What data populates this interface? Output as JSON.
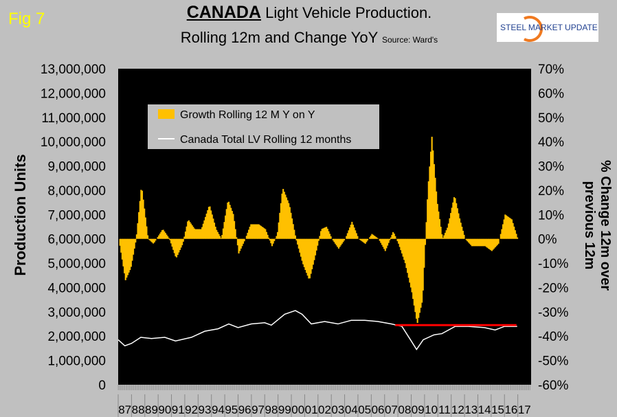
{
  "fig_label": "Fig 7",
  "title_country": "CANADA",
  "title_rest": " Light Vehicle Production.",
  "subtitle": "Rolling 12m and Change YoY",
  "source": "Source: Ward's",
  "logo_text": "STEEL MARKET UPDATE",
  "chart_data": {
    "type": "bar+line",
    "title": "CANADA Light Vehicle Production. Rolling 12m and Change YoY",
    "ylabel": "Production Units",
    "y2label": "% Change 12m over previous 12m",
    "ylim": [
      0,
      13000000
    ],
    "y2lim": [
      -60,
      70
    ],
    "yticks": [
      "0",
      "1,000,000",
      "2,000,000",
      "3,000,000",
      "4,000,000",
      "5,000,000",
      "6,000,000",
      "7,000,000",
      "8,000,000",
      "9,000,000",
      "10,000,000",
      "11,000,000",
      "12,000,000",
      "13,000,000"
    ],
    "y2ticks": [
      "-60%",
      "-50%",
      "-40%",
      "-30%",
      "-20%",
      "-10%",
      "0%",
      "10%",
      "20%",
      "30%",
      "40%",
      "50%",
      "60%",
      "70%"
    ],
    "xticks": [
      "87",
      "88",
      "89",
      "90",
      "91",
      "92",
      "93",
      "94",
      "95",
      "96",
      "97",
      "98",
      "99",
      "00",
      "01",
      "02",
      "03",
      "04",
      "05",
      "06",
      "07",
      "08",
      "09",
      "10",
      "11",
      "12",
      "13",
      "14",
      "15",
      "16",
      "17"
    ],
    "xlim": [
      1987,
      2018
    ],
    "legend": [
      "Growth Rolling 12 M Y on Y",
      "Canada Total LV Rolling 12 months"
    ],
    "legend_position": "top-left",
    "growth_series": {
      "name": "Growth Rolling 12 M Y on Y",
      "color": "#ffc000",
      "x": [
        1987.0,
        1987.5,
        1987.9,
        1988.3,
        1988.7,
        1989.2,
        1989.6,
        1990.3,
        1990.8,
        1991.3,
        1991.8,
        1992.2,
        1992.7,
        1993.2,
        1993.8,
        1994.3,
        1994.7,
        1995.2,
        1995.6,
        1996.0,
        1996.5,
        1996.9,
        1997.5,
        1998.0,
        1998.5,
        1998.9,
        1999.3,
        1999.8,
        2000.3,
        2000.8,
        2001.3,
        2001.7,
        2002.2,
        2002.6,
        2003.0,
        2003.5,
        2004.0,
        2004.5,
        2005.0,
        2005.5,
        2006.0,
        2006.5,
        2007.0,
        2007.6,
        2008.0,
        2008.5,
        2009.0,
        2009.4,
        2009.8,
        2010.2,
        2010.5,
        2010.9,
        2011.3,
        2011.7,
        2012.2,
        2012.6,
        2013.0,
        2013.5,
        2014.0,
        2014.5,
        2015.0,
        2015.5,
        2016.0,
        2016.5,
        2016.95
      ],
      "y": [
        0,
        -17,
        -12,
        0,
        22,
        0,
        -2,
        4,
        0,
        -8,
        -2,
        8,
        4,
        4,
        14,
        4,
        0,
        16,
        10,
        -6,
        0,
        6,
        6,
        4,
        -3,
        2,
        21,
        14,
        0,
        -10,
        -17,
        -8,
        4,
        5,
        0,
        -4,
        0,
        7,
        0,
        -2,
        2,
        0,
        -5,
        3,
        -2,
        -10,
        -22,
        -35,
        -25,
        20,
        42,
        15,
        0,
        5,
        18,
        8,
        0,
        -3,
        -3,
        -3,
        -5,
        -2,
        10,
        8,
        0
      ]
    },
    "lv_series": {
      "name": "Canada Total LV Rolling 12 months",
      "color": "#ffffff",
      "x": [
        1987.0,
        1987.5,
        1988.0,
        1988.7,
        1989.5,
        1990.5,
        1991.3,
        1992.5,
        1993.5,
        1994.5,
        1995.3,
        1996.0,
        1997.0,
        1998.0,
        1998.5,
        1999.5,
        2000.3,
        2000.8,
        2001.5,
        2002.5,
        2003.5,
        2004.5,
        2005.5,
        2006.5,
        2007.5,
        2008.3,
        2009.0,
        2009.4,
        2009.9,
        2010.7,
        2011.3,
        2012.3,
        2013.3,
        2014.5,
        2015.3,
        2016.0,
        2016.95
      ],
      "y": [
        1850000,
        1600000,
        1700000,
        1950000,
        1900000,
        1950000,
        1800000,
        1950000,
        2200000,
        2300000,
        2500000,
        2350000,
        2500000,
        2550000,
        2450000,
        2900000,
        3050000,
        2900000,
        2500000,
        2600000,
        2500000,
        2650000,
        2650000,
        2600000,
        2500000,
        2400000,
        1800000,
        1450000,
        1850000,
        2050000,
        2100000,
        2400000,
        2400000,
        2350000,
        2250000,
        2400000,
        2400000
      ]
    },
    "reference_line": {
      "color": "#ff0000",
      "value": 2450000,
      "x": [
        2007.8,
        2016.9
      ]
    }
  }
}
